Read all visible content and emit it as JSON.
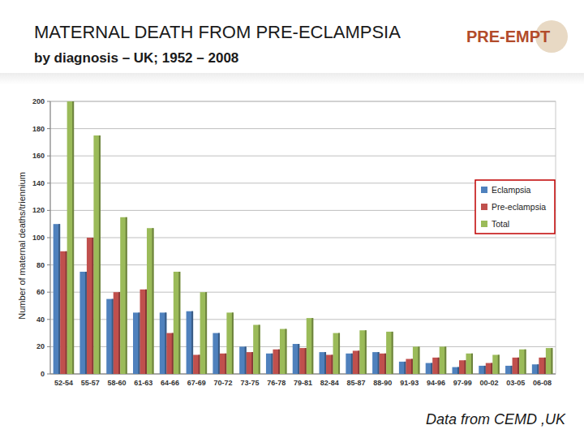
{
  "chart_data": {
    "type": "bar",
    "title": "MATERNAL DEATH FROM PRE-ECLAMPSIA",
    "subtitle": "by diagnosis – UK; 1952 – 2008",
    "y_label": "Number of maternal deaths/triennium",
    "source": "Data from CEMD ,UK",
    "logo": "PRE-EMPT",
    "categories": [
      "52-54",
      "55-57",
      "58-60",
      "61-63",
      "64-66",
      "67-69",
      "70-72",
      "73-75",
      "76-78",
      "79-81",
      "82-84",
      "85-87",
      "88-90",
      "91-93",
      "94-96",
      "97-99",
      "00-02",
      "03-05",
      "06-08"
    ],
    "series": [
      {
        "name": "Eclampsia",
        "color": "#4f81bd",
        "values": [
          110,
          75,
          55,
          45,
          45,
          46,
          30,
          20,
          15,
          22,
          16,
          15,
          16,
          9,
          8,
          5,
          6,
          6,
          7
        ]
      },
      {
        "name": "Pre-eclampsia",
        "color": "#c0504d",
        "values": [
          90,
          100,
          60,
          62,
          30,
          14,
          15,
          16,
          18,
          19,
          14,
          17,
          15,
          11,
          12,
          10,
          8,
          12,
          12
        ]
      },
      {
        "name": "Total",
        "color": "#9bbb59",
        "values": [
          200,
          175,
          115,
          107,
          75,
          60,
          45,
          36,
          33,
          41,
          30,
          32,
          31,
          20,
          20,
          15,
          14,
          18,
          19
        ]
      }
    ],
    "ylim": [
      0,
      200
    ],
    "yticks": [
      0,
      20,
      40,
      60,
      80,
      100,
      120,
      140,
      160,
      180,
      200
    ],
    "grid": true,
    "legend": "right"
  }
}
